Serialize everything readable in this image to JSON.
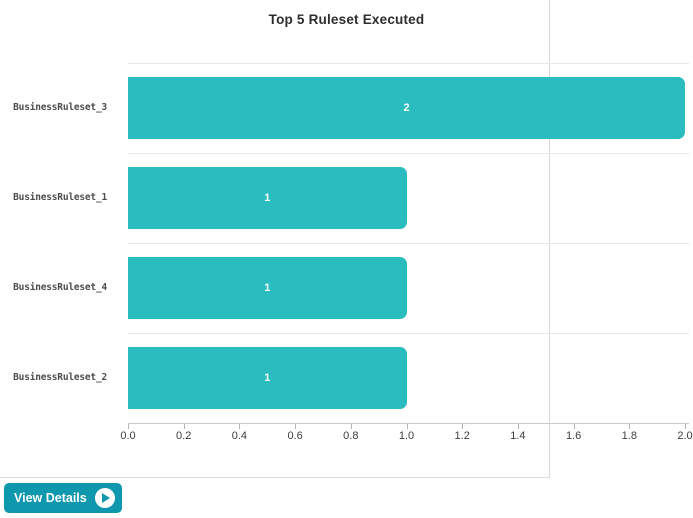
{
  "chart_data": {
    "type": "bar",
    "orientation": "horizontal",
    "title": "Top 5 Ruleset Executed",
    "categories": [
      "BusinessRuleset_3",
      "BusinessRuleset_1",
      "BusinessRuleset_4",
      "BusinessRuleset_2"
    ],
    "values": [
      2,
      1,
      1,
      1
    ],
    "value_labels": [
      "2",
      "1",
      "1",
      "1"
    ],
    "xlabel": "",
    "ylabel": "",
    "xlim": [
      0,
      2.0
    ],
    "xticks": [
      "0.0",
      "0.2",
      "0.4",
      "0.6",
      "0.8",
      "1.0",
      "1.2",
      "1.4",
      "1.6",
      "1.8",
      "2.0"
    ],
    "grid": "horizontal-row-separators",
    "legend_position": "none",
    "bar_color": "#2abcbe",
    "value_label_color": "#ffffff"
  },
  "footer": {
    "view_details_label": "View Details",
    "button_color": "#0f97ad",
    "icon": "play-circle-icon"
  }
}
